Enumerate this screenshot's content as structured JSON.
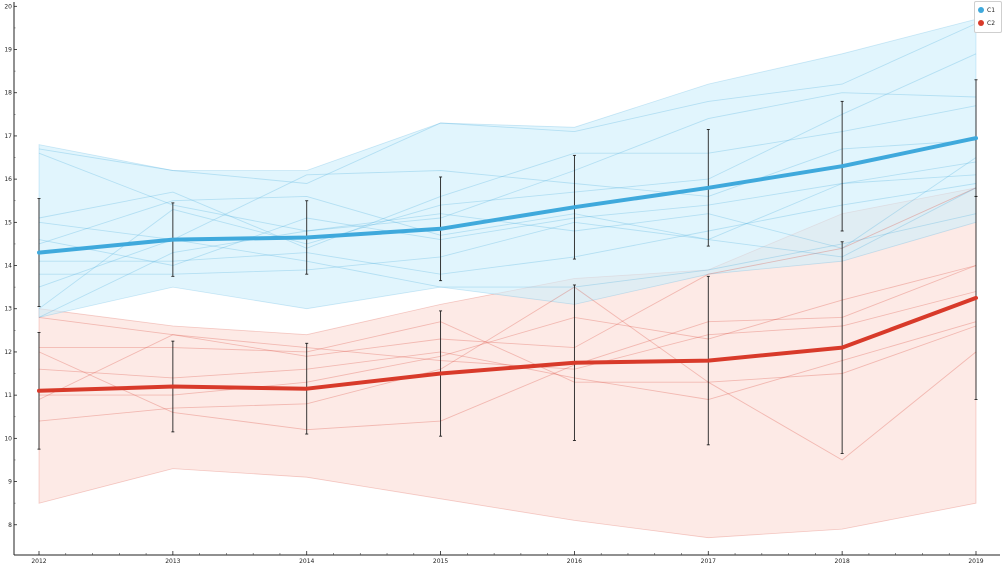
{
  "chart_data": {
    "type": "line",
    "title": "",
    "xlabel": "",
    "ylabel": "",
    "x": [
      2012,
      2013,
      2014,
      2015,
      2016,
      2017,
      2018,
      2019
    ],
    "xticks": [
      "2012",
      "2013",
      "2014",
      "2015",
      "2016",
      "2017",
      "2018",
      "2019"
    ],
    "yticks": [
      "8",
      "9",
      "10",
      "11",
      "12",
      "13",
      "14",
      "15",
      "16",
      "17",
      "18",
      "19",
      "20"
    ],
    "ylim": [
      7.3,
      20.1
    ],
    "legend_position": "top-right",
    "grid": false,
    "series": [
      {
        "name": "C1",
        "color": "#3fa9dc",
        "band_color": "#cdeefb",
        "mean": [
          14.3,
          14.6,
          14.65,
          14.85,
          15.35,
          15.8,
          16.3,
          16.95
        ],
        "error": [
          1.25,
          0.85,
          0.85,
          1.2,
          1.2,
          1.35,
          1.5,
          1.35
        ],
        "band_upper": [
          16.8,
          16.2,
          16.2,
          17.3,
          17.2,
          18.2,
          18.9,
          19.7
        ],
        "band_lower": [
          12.8,
          13.5,
          13.0,
          13.5,
          13.1,
          13.8,
          14.1,
          15.0
        ],
        "samples": [
          [
            16.7,
            16.2,
            15.9,
            17.3,
            17.1,
            17.8,
            18.2,
            19.6
          ],
          [
            16.6,
            15.4,
            14.8,
            15.1,
            16.2,
            17.4,
            18.0,
            17.9
          ],
          [
            15.1,
            15.7,
            14.4,
            15.6,
            16.6,
            16.6,
            17.1,
            17.7
          ],
          [
            15.0,
            14.6,
            16.1,
            16.2,
            15.9,
            15.6,
            16.7,
            16.9
          ],
          [
            14.6,
            14.0,
            15.1,
            14.6,
            15.1,
            15.4,
            15.9,
            16.1
          ],
          [
            14.1,
            14.1,
            14.3,
            13.8,
            14.2,
            14.8,
            15.4,
            15.9
          ],
          [
            13.8,
            13.8,
            13.9,
            14.2,
            15.0,
            14.6,
            15.9,
            16.4
          ],
          [
            13.5,
            14.6,
            14.1,
            13.5,
            13.5,
            13.9,
            14.5,
            15.2
          ],
          [
            13.0,
            15.3,
            14.5,
            15.4,
            15.7,
            16.0,
            17.5,
            18.9
          ],
          [
            12.8,
            14.3,
            14.8,
            15.2,
            14.8,
            15.2,
            14.4,
            16.5
          ],
          [
            14.5,
            15.5,
            15.6,
            14.7,
            15.2,
            14.6,
            14.2,
            15.8
          ]
        ]
      },
      {
        "name": "C2",
        "color": "#d83a2a",
        "band_color": "#fbdcd6",
        "mean": [
          11.1,
          11.2,
          11.15,
          11.5,
          11.75,
          11.8,
          12.1,
          13.25
        ],
        "error": [
          1.35,
          1.05,
          1.05,
          1.45,
          1.8,
          1.95,
          2.45,
          2.35
        ],
        "band_upper": [
          13.0,
          12.6,
          12.4,
          13.1,
          13.7,
          13.9,
          15.2,
          15.8
        ],
        "band_lower": [
          8.5,
          9.3,
          9.1,
          8.6,
          8.1,
          7.7,
          7.9,
          8.5
        ],
        "samples": [
          [
            12.1,
            12.1,
            12.0,
            12.7,
            11.3,
            11.3,
            11.5,
            12.6
          ],
          [
            12.0,
            10.6,
            10.2,
            10.4,
            11.7,
            12.7,
            12.8,
            14.0
          ],
          [
            11.0,
            11.0,
            11.3,
            11.9,
            12.8,
            12.3,
            13.2,
            14.0
          ],
          [
            10.9,
            12.4,
            11.9,
            12.3,
            12.1,
            13.8,
            14.4,
            15.8
          ],
          [
            10.4,
            10.7,
            10.8,
            11.6,
            13.5,
            11.3,
            9.5,
            12.0
          ],
          [
            12.8,
            12.4,
            12.1,
            11.8,
            11.6,
            12.4,
            12.6,
            13.4
          ],
          [
            11.6,
            11.4,
            11.6,
            12.0,
            11.4,
            10.9,
            11.8,
            12.7
          ]
        ]
      }
    ]
  }
}
